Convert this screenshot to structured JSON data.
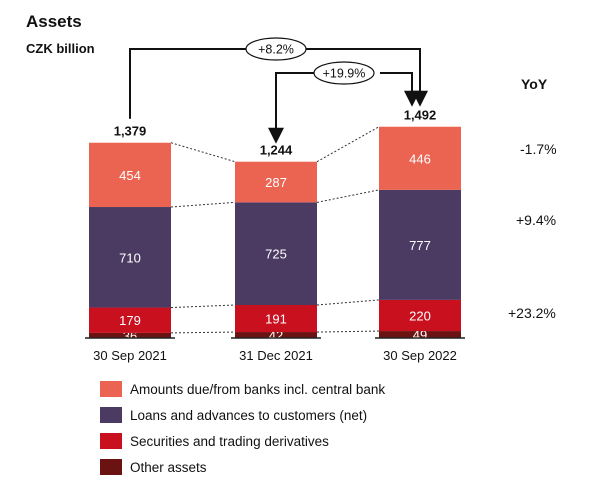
{
  "title": "Assets",
  "subtitle": "CZK billion",
  "yoy_header": "YoY",
  "colors": {
    "amounts_due": "#eb6452",
    "loans": "#4b3b63",
    "securities": "#c8101e",
    "other": "#6b1212"
  },
  "chart_data": {
    "type": "bar",
    "stacked": true,
    "categories": [
      "30 Sep 2021",
      "31 Dec 2021",
      "30 Sep 2022"
    ],
    "series": [
      {
        "name": "Other assets",
        "color_key": "other",
        "values": [
          36,
          42,
          49
        ]
      },
      {
        "name": "Securities and trading derivatives",
        "color_key": "securities",
        "values": [
          179,
          191,
          220
        ]
      },
      {
        "name": "Loans and advances to customers (net)",
        "color_key": "loans",
        "values": [
          710,
          725,
          777
        ]
      },
      {
        "name": "Amounts due/from banks incl. central bank",
        "color_key": "amounts_due",
        "values": [
          454,
          287,
          446
        ]
      }
    ],
    "totals": [
      "1,379",
      "1,244",
      "1,492"
    ],
    "legend_order": [
      3,
      2,
      1,
      0
    ],
    "growth_labels": [
      "+8.2%",
      "+19.9%"
    ],
    "yoy": [
      "-1.7%",
      "+9.4%",
      "+23.2%"
    ],
    "legend_position": "bottom-left"
  }
}
